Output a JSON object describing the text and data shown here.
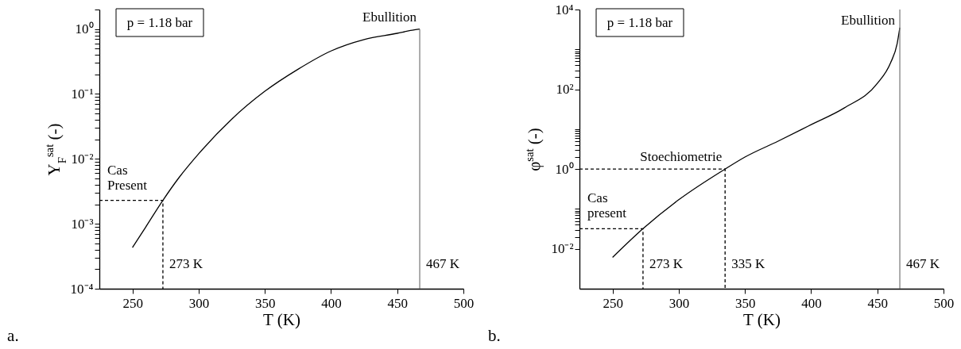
{
  "chart_data": [
    {
      "type": "line",
      "title": "a.",
      "xlabel": "T (K)",
      "ylabel": "Y$_{F}$$^{sat}$ (-)",
      "log": "y",
      "line_style": "solid",
      "xlim": [
        225,
        500
      ],
      "xticks": [
        250,
        300,
        350,
        400,
        450,
        500
      ],
      "ylim": [
        0.0001,
        2
      ],
      "yticks": [
        {
          "value": 0.0001,
          "label": "10⁻⁴"
        },
        {
          "value": 0.0002,
          "label": null
        },
        {
          "value": 0.0003,
          "label": null
        },
        {
          "value": 0.0004,
          "label": null
        },
        {
          "value": 0.0005,
          "label": null
        },
        {
          "value": 0.0006,
          "label": null
        },
        {
          "value": 0.0007,
          "label": null
        },
        {
          "value": 0.0008,
          "label": null
        },
        {
          "value": 0.0009,
          "label": null
        },
        {
          "value": 0.001,
          "label": "10⁻³"
        },
        {
          "value": 0.002,
          "label": null
        },
        {
          "value": 0.003,
          "label": null
        },
        {
          "value": 0.004,
          "label": null
        },
        {
          "value": 0.005,
          "label": null
        },
        {
          "value": 0.006,
          "label": null
        },
        {
          "value": 0.007,
          "label": null
        },
        {
          "value": 0.008,
          "label": null
        },
        {
          "value": 0.009,
          "label": null
        },
        {
          "value": 0.01,
          "label": "10⁻²"
        },
        {
          "value": 0.02,
          "label": null
        },
        {
          "value": 0.03,
          "label": null
        },
        {
          "value": 0.04,
          "label": null
        },
        {
          "value": 0.05,
          "label": null
        },
        {
          "value": 0.06,
          "label": null
        },
        {
          "value": 0.07,
          "label": null
        },
        {
          "value": 0.08,
          "label": null
        },
        {
          "value": 0.09,
          "label": null
        },
        {
          "value": 0.1,
          "label": "10⁻¹"
        },
        {
          "value": 0.2,
          "label": null
        },
        {
          "value": 0.3,
          "label": null
        },
        {
          "value": 0.4,
          "label": null
        },
        {
          "value": 0.5,
          "label": null
        },
        {
          "value": 0.6,
          "label": null
        },
        {
          "value": 0.7,
          "label": null
        },
        {
          "value": 0.8,
          "label": null
        },
        {
          "value": 0.9,
          "label": null
        },
        {
          "value": 1,
          "label": "10⁰"
        },
        {
          "value": 2,
          "label": null
        }
      ],
      "series": [
        {
          "color": "#000000",
          "x": [
            250,
            260,
            273,
            285,
            300,
            325,
            350,
            375,
            400,
            425,
            450,
            460,
            467
          ],
          "values": [
            0.00043,
            0.00089,
            0.0023,
            0.0051,
            0.012,
            0.041,
            0.11,
            0.24,
            0.46,
            0.69,
            0.86,
            0.95,
            1.0
          ]
        },
        {
          "color": "#000000",
          "line_style": "dashed",
          "x": [
            225,
            273,
            273
          ],
          "values": [
            0.0023,
            0.0023,
            0.0001
          ]
        },
        {
          "color": "#808080",
          "x": [
            467,
            467
          ],
          "values": [
            0.0001,
            1.0
          ]
        }
      ],
      "annotations": [
        "p = 1.18 bar",
        {
          "text": "Cas\nPresent",
          "x": 225,
          "y": 0.0023
        },
        {
          "text": "273 K",
          "x": 273,
          "y": 0.0001
        },
        {
          "text": "467 K",
          "x": 467,
          "y": 0.0001
        },
        {
          "text": "Ebullition",
          "x": 467,
          "y": 1.0
        }
      ]
    },
    {
      "type": "line",
      "title": "b.",
      "xlabel": "T (K)",
      "ylabel": "φ$^{sat}$ (-)",
      "log": "y",
      "line_style": "solid",
      "xlim": [
        225,
        500
      ],
      "xticks": [
        250,
        300,
        350,
        400,
        450,
        500
      ],
      "ylim": [
        0.001,
        10000
      ],
      "yticks": [
        {
          "value": 0.01,
          "label": "10⁻²"
        },
        {
          "value": 0.02,
          "label": null
        },
        {
          "value": 0.03,
          "label": null
        },
        {
          "value": 0.04,
          "label": null
        },
        {
          "value": 0.05,
          "label": null
        },
        {
          "value": 0.06,
          "label": null
        },
        {
          "value": 0.07,
          "label": null
        },
        {
          "value": 0.08,
          "label": null
        },
        {
          "value": 0.09,
          "label": null
        },
        {
          "value": 0.1,
          "label": null
        },
        {
          "value": 1,
          "label": "10⁰"
        },
        {
          "value": 2,
          "label": null
        },
        {
          "value": 3,
          "label": null
        },
        {
          "value": 4,
          "label": null
        },
        {
          "value": 5,
          "label": null
        },
        {
          "value": 6,
          "label": null
        },
        {
          "value": 7,
          "label": null
        },
        {
          "value": 8,
          "label": null
        },
        {
          "value": 9,
          "label": null
        },
        {
          "value": 10,
          "label": null
        },
        {
          "value": 100,
          "label": "10²"
        },
        {
          "value": 200,
          "label": null
        },
        {
          "value": 300,
          "label": null
        },
        {
          "value": 400,
          "label": null
        },
        {
          "value": 500,
          "label": null
        },
        {
          "value": 600,
          "label": null
        },
        {
          "value": 700,
          "label": null
        },
        {
          "value": 800,
          "label": null
        },
        {
          "value": 900,
          "label": null
        },
        {
          "value": 1000,
          "label": null
        },
        {
          "value": 10000,
          "label": "10⁴"
        }
      ],
      "series": [
        {
          "color": "#000000",
          "x": [
            250,
            273,
            300,
            335,
            350,
            375,
            400,
            425,
            450,
            460,
            465,
            467
          ],
          "values": [
            0.0061,
            0.032,
            0.17,
            1.0,
            2.0,
            5.0,
            13,
            34,
            140,
            460,
            1400,
            3500
          ]
        },
        {
          "color": "#000000",
          "line_style": "dashed",
          "x": [
            225,
            273,
            273
          ],
          "values": [
            0.032,
            0.032,
            0.001
          ]
        },
        {
          "color": "#000000",
          "line_style": "dashed",
          "x": [
            225,
            335,
            335
          ],
          "values": [
            1.0,
            1.0,
            0.001
          ]
        },
        {
          "color": "#808080",
          "x": [
            467,
            467
          ],
          "values": [
            0.001,
            10000
          ]
        }
      ],
      "annotations": [
        "p = 1.18 bar",
        {
          "text": "Cas\npresent",
          "x": 225,
          "y": 0.032
        },
        {
          "text": "Stoechiometrie",
          "x": 335,
          "y": 1.0
        },
        {
          "text": "273 K",
          "x": 273,
          "y": 0.001
        },
        {
          "text": "335 K",
          "x": 335,
          "y": 0.001
        },
        {
          "text": "467 K",
          "x": 467,
          "y": 0.001
        },
        {
          "text": "Ebullition",
          "x": 467,
          "y": 10000
        }
      ]
    }
  ]
}
